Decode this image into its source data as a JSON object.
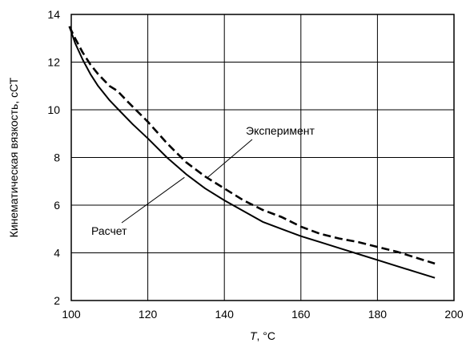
{
  "chart_data": {
    "type": "line",
    "xlabel_var": "T",
    "xlabel_unit": ", °C",
    "ylabel": "Кинематическая вязкость, сСТ",
    "xlim": [
      100,
      200
    ],
    "ylim": [
      2,
      14
    ],
    "xticks": [
      100,
      120,
      140,
      160,
      180,
      200
    ],
    "yticks": [
      2,
      4,
      6,
      8,
      10,
      12,
      14
    ],
    "grid": true,
    "series": [
      {
        "name": "Эксперимент",
        "style": "dashed",
        "color": "#000000",
        "x": [
          99.5,
          101,
          103,
          105,
          107,
          110,
          112,
          115,
          120,
          125,
          130,
          135,
          140,
          145,
          150,
          155,
          160,
          165,
          170,
          175,
          180,
          185,
          190,
          195
        ],
        "y": [
          13.5,
          13.0,
          12.4,
          11.9,
          11.5,
          11.0,
          10.8,
          10.3,
          9.5,
          8.6,
          7.8,
          7.2,
          6.7,
          6.2,
          5.8,
          5.5,
          5.1,
          4.8,
          4.6,
          4.45,
          4.25,
          4.05,
          3.8,
          3.55
        ]
      },
      {
        "name": "Расчет",
        "style": "solid",
        "color": "#000000",
        "x": [
          99.5,
          101,
          103,
          105,
          107,
          110,
          113,
          116,
          120,
          125,
          130,
          135,
          140,
          145,
          150,
          155,
          160,
          165,
          170,
          175,
          180,
          185,
          190,
          195
        ],
        "y": [
          13.5,
          12.8,
          12.1,
          11.5,
          11.0,
          10.4,
          9.9,
          9.4,
          8.8,
          8.0,
          7.3,
          6.7,
          6.2,
          5.75,
          5.3,
          5.0,
          4.7,
          4.45,
          4.2,
          3.95,
          3.7,
          3.45,
          3.2,
          2.95
        ]
      }
    ],
    "annotations": [
      {
        "text": "Эксперимент",
        "series": "Эксперимент"
      },
      {
        "text": "Расчет",
        "series": "Расчет"
      }
    ]
  }
}
